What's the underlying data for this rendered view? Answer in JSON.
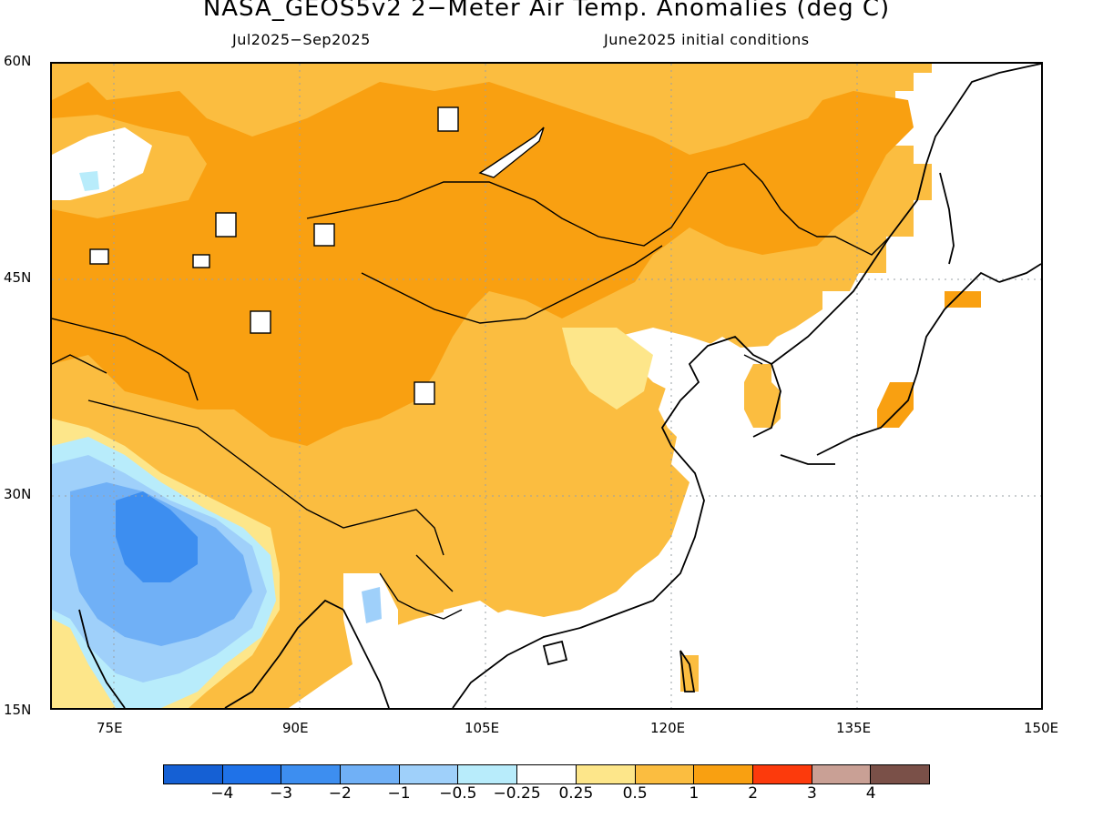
{
  "title": "NASA_GEOS5v2 2−Meter Air Temp. Anomalies (deg C)",
  "subtitle_left": "Jul2025−Sep2025",
  "subtitle_right": "June2025 initial conditions",
  "map": {
    "lat_labels": [
      "60N",
      "45N",
      "30N",
      "15N"
    ],
    "lon_labels": [
      "75E",
      "90E",
      "105E",
      "120E",
      "135E",
      "150E"
    ],
    "gridlines": "dotted"
  },
  "colorbar": {
    "labels": [
      "−4",
      "−3",
      "−2",
      "−1",
      "−0.5",
      "−0.25",
      "0.25",
      "0.5",
      "1",
      "2",
      "3",
      "4"
    ],
    "colors": [
      "#1560d4",
      "#1f72e8",
      "#3d8ef0",
      "#70b0f6",
      "#9fd0fa",
      "#b8ecfb",
      "#ffffff",
      "#fde68a",
      "#fbbd40",
      "#f9a011",
      "#fc3a0c",
      "#c9a095",
      "#7a5048"
    ]
  }
}
